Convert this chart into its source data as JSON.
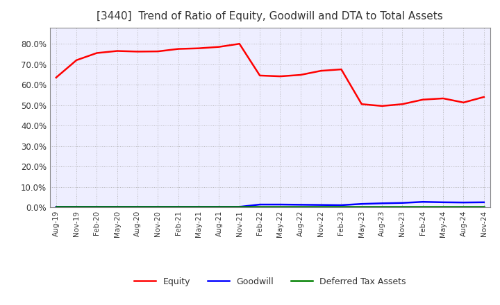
{
  "title": "[3440]  Trend of Ratio of Equity, Goodwill and DTA to Total Assets",
  "title_fontsize": 11,
  "title_color": "#333333",
  "ylim": [
    0.0,
    0.88
  ],
  "yticks": [
    0.0,
    0.1,
    0.2,
    0.3,
    0.4,
    0.5,
    0.6,
    0.7,
    0.8
  ],
  "x_labels": [
    "Aug-19",
    "Nov-19",
    "Feb-20",
    "May-20",
    "Aug-20",
    "Nov-20",
    "Feb-21",
    "May-21",
    "Aug-21",
    "Nov-21",
    "Feb-22",
    "May-22",
    "Aug-22",
    "Nov-22",
    "Feb-23",
    "May-23",
    "Aug-23",
    "Nov-23",
    "Feb-24",
    "May-24",
    "Aug-24",
    "Nov-24"
  ],
  "equity": [
    0.635,
    0.72,
    0.755,
    0.765,
    0.762,
    0.763,
    0.775,
    0.778,
    0.785,
    0.8,
    0.645,
    0.641,
    0.648,
    0.668,
    0.675,
    0.505,
    0.496,
    0.505,
    0.527,
    0.533,
    0.513,
    0.54
  ],
  "goodwill": [
    0.003,
    0.003,
    0.003,
    0.003,
    0.003,
    0.003,
    0.003,
    0.003,
    0.003,
    0.003,
    0.014,
    0.014,
    0.013,
    0.012,
    0.011,
    0.017,
    0.02,
    0.022,
    0.027,
    0.025,
    0.024,
    0.025
  ],
  "dta": [
    0.003,
    0.003,
    0.003,
    0.003,
    0.003,
    0.003,
    0.003,
    0.003,
    0.003,
    0.003,
    0.003,
    0.003,
    0.003,
    0.003,
    0.003,
    0.003,
    0.003,
    0.003,
    0.003,
    0.003,
    0.003,
    0.003
  ],
  "equity_color": "#FF0000",
  "goodwill_color": "#0000FF",
  "dta_color": "#008000",
  "legend_labels": [
    "Equity",
    "Goodwill",
    "Deferred Tax Assets"
  ],
  "background_color": "#FFFFFF",
  "plot_bg_color": "#EEEEFF",
  "grid_color": "#AAAAAA",
  "line_width": 1.8,
  "spine_color": "#888888"
}
